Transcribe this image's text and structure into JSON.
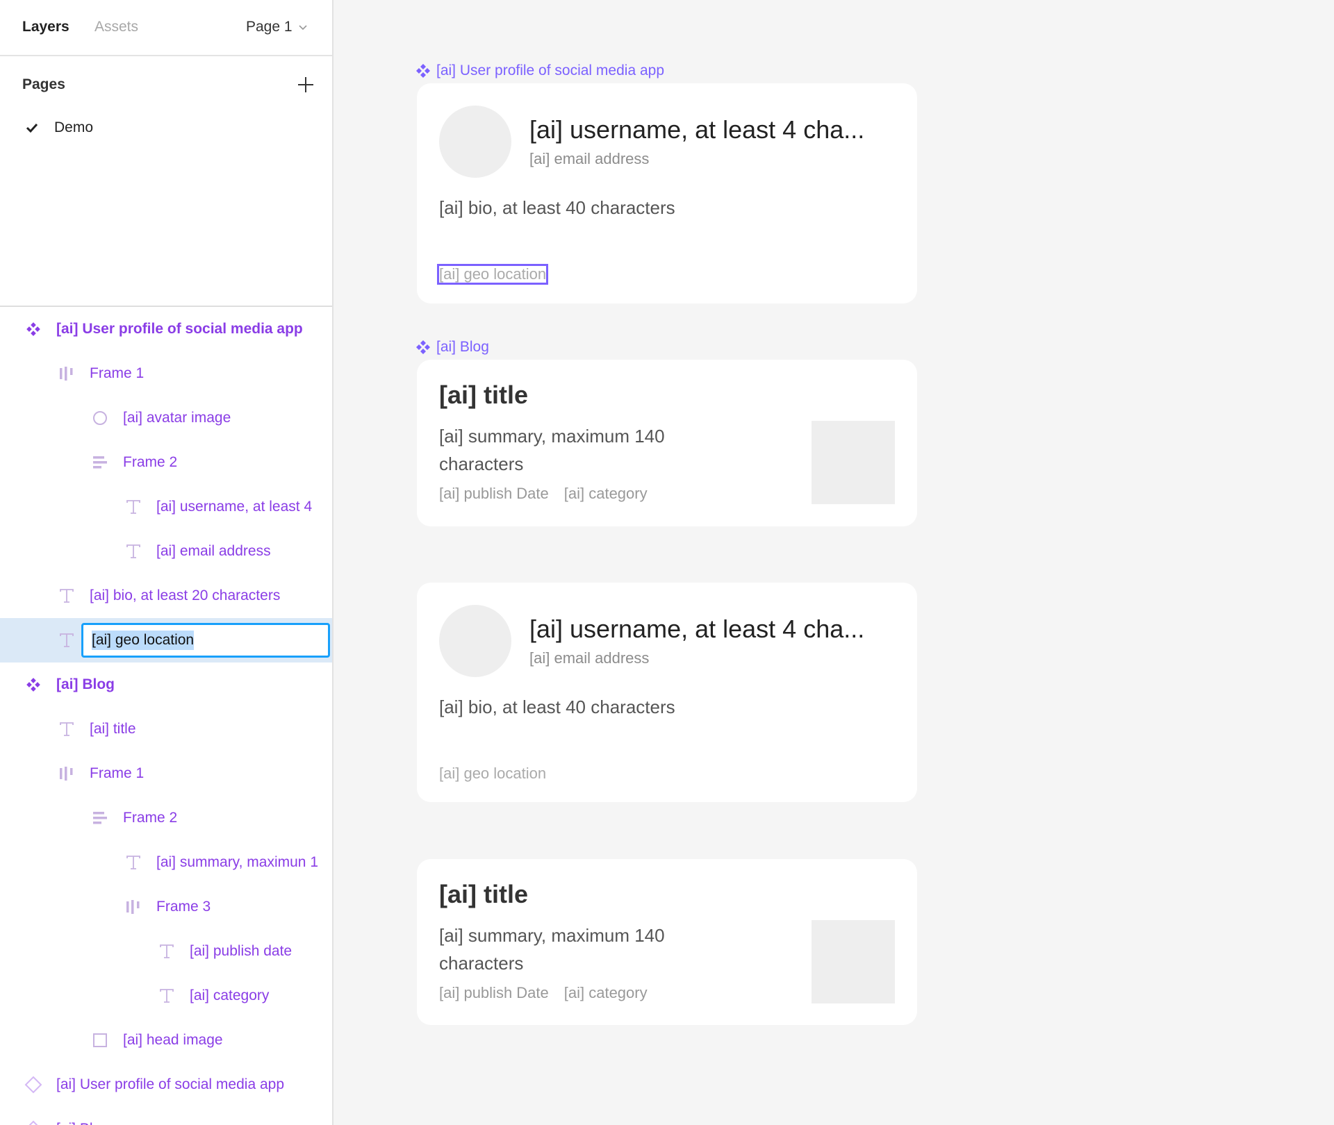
{
  "sidebar": {
    "tabs": {
      "layers": "Layers",
      "assets": "Assets"
    },
    "page_selector": "Page 1",
    "pages_heading": "Pages",
    "pages": [
      {
        "label": "Demo",
        "current": true
      }
    ],
    "layers": [
      {
        "label": "[ai] User profile of social media app",
        "icon": "component-icon",
        "level": 0,
        "bold": true
      },
      {
        "label": "Frame 1",
        "icon": "horizontal-autolayout-icon",
        "level": 1
      },
      {
        "label": "[ai] avatar image",
        "icon": "ellipse-icon",
        "level": 2
      },
      {
        "label": "Frame 2",
        "icon": "vertical-autolayout-icon",
        "level": 2
      },
      {
        "label": "[ai] username, at least 4",
        "icon": "text-icon",
        "level": 3
      },
      {
        "label": "[ai] email address",
        "icon": "text-icon",
        "level": 3
      },
      {
        "label": "[ai] bio, at least 20 characters",
        "icon": "text-icon",
        "level": 1
      },
      {
        "label": "[ai] geo location",
        "icon": "text-icon",
        "level": 1,
        "editing": true
      },
      {
        "label": "[ai] Blog",
        "icon": "component-icon",
        "level": 0,
        "bold": true
      },
      {
        "label": "[ai] title",
        "icon": "text-icon",
        "level": 1
      },
      {
        "label": "Frame 1",
        "icon": "horizontal-autolayout-icon",
        "level": 1
      },
      {
        "label": "Frame 2",
        "icon": "vertical-autolayout-icon",
        "level": 2
      },
      {
        "label": "[ai] summary, maximun 1",
        "icon": "text-icon",
        "level": 3
      },
      {
        "label": "Frame 3",
        "icon": "horizontal-autolayout-icon",
        "level": 3
      },
      {
        "label": "[ai] publish date",
        "icon": "text-icon",
        "level": 4
      },
      {
        "label": "[ai] category",
        "icon": "text-icon",
        "level": 4
      },
      {
        "label": "[ai] head image",
        "icon": "rectangle-icon",
        "level": 2
      },
      {
        "label": "[ai] User profile of social media app",
        "icon": "instance-icon",
        "level": 0
      },
      {
        "label": "[ai] Bl",
        "icon": "instance-icon",
        "level": 0
      }
    ]
  },
  "canvas": {
    "profile_label": "[ai] User profile of social media app",
    "blog_label": "[ai] Blog",
    "profile": {
      "username": "[ai] username, at least 4 cha...",
      "email": "[ai] email address",
      "bio": "[ai] bio, at least 40 characters",
      "geo": "[ai] geo location"
    },
    "blog": {
      "title": "[ai] title",
      "summary": "[ai] summary, maximum 140 characters",
      "publish_date": "[ai] publish Date",
      "category": "[ai] category"
    }
  },
  "colors": {
    "accent": "#7b61ff",
    "layer_text": "#8a3de6",
    "selection": "#18a0fb",
    "selected_row": "#dbe9f7"
  }
}
